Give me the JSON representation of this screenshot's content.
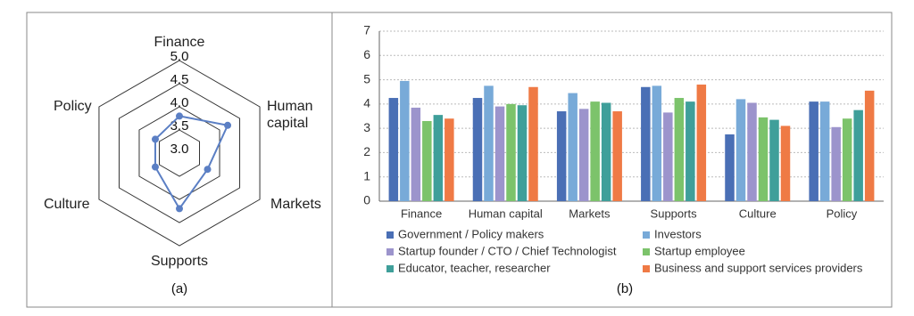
{
  "chart_data": [
    {
      "type": "radar",
      "caption": "(a)",
      "categories": [
        "Finance",
        "Human capital",
        "Markets",
        "Supports",
        "Culture",
        "Policy"
      ],
      "series": [
        {
          "color": "#5b7fc4",
          "values": [
            3.8,
            4.2,
            3.7,
            4.2,
            3.6,
            3.6
          ]
        }
      ],
      "rlim": [
        3,
        5
      ],
      "rticks": [
        {
          "value": 3,
          "label": "3.0"
        },
        3.5,
        {
          "value": 4,
          "label": "4.0"
        },
        4.5,
        {
          "value": 5,
          "label": "5.0"
        }
      ]
    },
    {
      "type": "bar",
      "caption": "(b)",
      "categories": [
        "Finance",
        "Human capital",
        "Markets",
        "Supports",
        "Culture",
        "Policy"
      ],
      "series": [
        {
          "name": "Government / Policy makers",
          "color": "#4a6fb5",
          "values": [
            4.25,
            4.25,
            3.7,
            4.7,
            2.75,
            4.1
          ]
        },
        {
          "name": "Investors",
          "color": "#78aad8",
          "values": [
            4.95,
            4.75,
            4.45,
            4.75,
            4.2,
            4.1
          ]
        },
        {
          "name": "Startup founder / CTO / Chief Technologist",
          "color": "#9c94cc",
          "values": [
            3.85,
            3.9,
            3.8,
            3.65,
            4.05,
            3.05
          ]
        },
        {
          "name": "Startup employee",
          "color": "#7cc36b",
          "values": [
            3.3,
            4.0,
            4.1,
            4.25,
            3.45,
            3.4
          ]
        },
        {
          "name": "Educator, teacher, researcher",
          "color": "#3f9f9a",
          "values": [
            3.55,
            3.95,
            4.05,
            4.1,
            3.35,
            3.75
          ]
        },
        {
          "name": "Business and support services providers",
          "color": "#ef7a45",
          "values": [
            3.4,
            4.7,
            3.7,
            4.8,
            3.1,
            4.55
          ]
        }
      ],
      "ylim": [
        0,
        7
      ],
      "yticks": [
        0,
        1,
        2,
        3,
        4,
        5,
        6,
        7
      ],
      "grid": true
    }
  ]
}
